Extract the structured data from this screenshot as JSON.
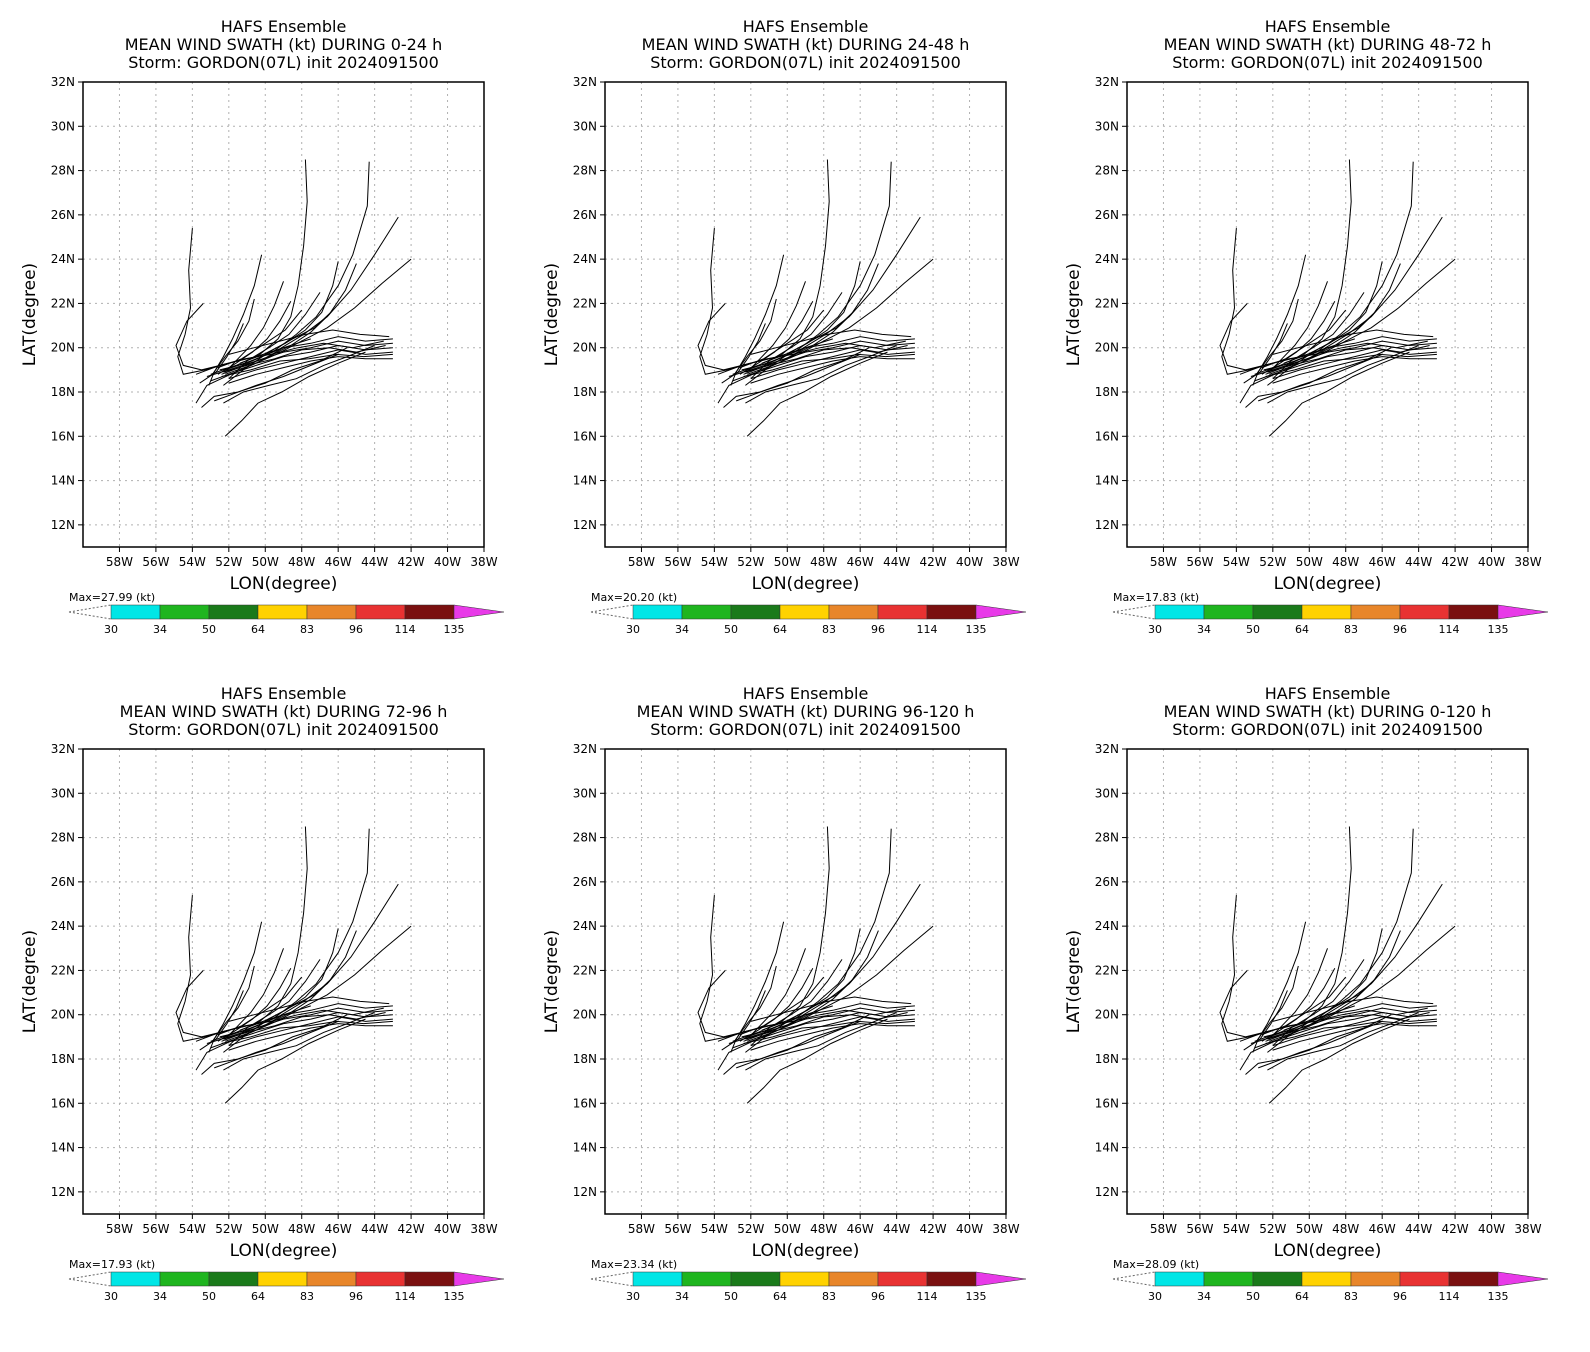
{
  "figure": {
    "ensemble_label": "HAFS Ensemble",
    "storm_line": "Storm: GORDON(07L) init 2024091500",
    "xlabel": "LON(degree)",
    "ylabel": "LAT(degree)",
    "xticks": [
      "58W",
      "56W",
      "54W",
      "52W",
      "50W",
      "48W",
      "46W",
      "44W",
      "42W",
      "40W",
      "38W"
    ],
    "yticks": [
      "12N",
      "14N",
      "16N",
      "18N",
      "20N",
      "22N",
      "24N",
      "26N",
      "28N",
      "30N",
      "32N"
    ],
    "colorbar_levels": [
      "30",
      "34",
      "50",
      "64",
      "83",
      "96",
      "114",
      "135"
    ],
    "colorbar_colors": [
      "#00e6e6",
      "#1fb51f",
      "#1a7a1a",
      "#ffd200",
      "#e8862a",
      "#e83232",
      "#7a1010",
      "#e83ae8"
    ],
    "max_unit": "(kt)",
    "track_color": "#000000"
  },
  "chart_data": [
    {
      "type": "line",
      "title": "MEAN WIND SWATH (kt) DURING  0-24 h",
      "max": "Max=27.99",
      "xlim": [
        -60,
        -38
      ],
      "ylim": [
        11,
        32
      ],
      "series_note": ""
    },
    {
      "type": "line",
      "title": "MEAN WIND SWATH (kt) DURING 24-48 h",
      "max": "Max=20.20",
      "xlim": [
        -60,
        -38
      ],
      "ylim": [
        11,
        32
      ],
      "series_note": ""
    },
    {
      "type": "line",
      "title": "MEAN WIND SWATH (kt) DURING 48-72 h",
      "max": "Max=17.83",
      "xlim": [
        -60,
        -38
      ],
      "ylim": [
        11,
        32
      ],
      "series_note": ""
    },
    {
      "type": "line",
      "title": "MEAN WIND SWATH (kt) DURING 72-96 h",
      "max": "Max=17.93",
      "xlim": [
        -60,
        -38
      ],
      "ylim": [
        11,
        32
      ],
      "series_note": ""
    },
    {
      "type": "line",
      "title": "MEAN WIND SWATH (kt) DURING 96-120 h",
      "max": "Max=23.34",
      "xlim": [
        -60,
        -38
      ],
      "ylim": [
        11,
        32
      ],
      "series_note": ""
    },
    {
      "type": "line",
      "title": "MEAN WIND SWATH (kt) DURING 0-120 h",
      "max": "Max=28.09",
      "xlim": [
        -60,
        -38
      ],
      "ylim": [
        11,
        32
      ],
      "series_note": ""
    }
  ],
  "tracks": [
    [
      [
        -43.0,
        20.4
      ],
      [
        -44.5,
        20.3
      ],
      [
        -46.0,
        20.5
      ],
      [
        -47.5,
        20.2
      ],
      [
        -49.0,
        20.0
      ],
      [
        -50.5,
        19.6
      ],
      [
        -52.0,
        19.3
      ],
      [
        -53.5,
        19.0
      ]
    ],
    [
      [
        -43.0,
        20.2
      ],
      [
        -44.5,
        20.1
      ],
      [
        -46.0,
        20.3
      ],
      [
        -47.5,
        20.0
      ],
      [
        -49.0,
        19.8
      ],
      [
        -50.5,
        19.4
      ],
      [
        -52.0,
        19.0
      ],
      [
        -53.2,
        18.7
      ]
    ],
    [
      [
        -43.0,
        20.0
      ],
      [
        -44.5,
        19.9
      ],
      [
        -46.0,
        20.1
      ],
      [
        -47.5,
        19.8
      ],
      [
        -49.0,
        19.6
      ],
      [
        -50.5,
        19.2
      ],
      [
        -52.0,
        18.8
      ],
      [
        -53.0,
        18.5
      ]
    ],
    [
      [
        -43.0,
        19.8
      ],
      [
        -44.5,
        19.7
      ],
      [
        -46.0,
        19.9
      ],
      [
        -47.5,
        19.6
      ],
      [
        -49.0,
        19.3
      ],
      [
        -50.5,
        19.0
      ],
      [
        -52.0,
        18.6
      ]
    ],
    [
      [
        -43.0,
        19.5
      ],
      [
        -44.5,
        19.5
      ],
      [
        -46.0,
        19.6
      ],
      [
        -47.5,
        19.4
      ],
      [
        -49.0,
        19.1
      ],
      [
        -50.5,
        18.8
      ],
      [
        -52.0,
        18.4
      ]
    ],
    [
      [
        -43.2,
        20.5
      ],
      [
        -44.8,
        20.6
      ],
      [
        -46.3,
        20.8
      ],
      [
        -47.8,
        20.6
      ],
      [
        -49.2,
        20.3
      ],
      [
        -50.6,
        20.0
      ],
      [
        -52.0,
        19.7
      ]
    ],
    [
      [
        -43.4,
        20.1
      ],
      [
        -45.0,
        19.8
      ],
      [
        -46.5,
        20.0
      ],
      [
        -48.0,
        19.9
      ],
      [
        -49.5,
        19.5
      ],
      [
        -51.0,
        19.2
      ],
      [
        -52.3,
        18.9
      ]
    ],
    [
      [
        -43.0,
        19.7
      ],
      [
        -44.6,
        19.6
      ],
      [
        -46.1,
        19.7
      ],
      [
        -47.6,
        19.5
      ],
      [
        -49.2,
        19.4
      ],
      [
        -50.8,
        19.0
      ],
      [
        -52.4,
        18.7
      ]
    ],
    [
      [
        -44.3,
        28.4
      ],
      [
        -44.4,
        26.4
      ],
      [
        -45.2,
        24.2
      ],
      [
        -46.0,
        22.8
      ],
      [
        -47.2,
        21.4
      ],
      [
        -48.3,
        20.6
      ],
      [
        -49.6,
        19.8
      ],
      [
        -51.0,
        19.3
      ],
      [
        -52.5,
        19.0
      ]
    ],
    [
      [
        -47.8,
        28.5
      ],
      [
        -47.7,
        26.6
      ],
      [
        -47.9,
        24.6
      ],
      [
        -48.2,
        22.8
      ],
      [
        -48.6,
        21.4
      ],
      [
        -49.3,
        20.4
      ],
      [
        -50.3,
        19.7
      ],
      [
        -51.6,
        19.2
      ],
      [
        -53.0,
        18.8
      ]
    ],
    [
      [
        -42.7,
        25.9
      ],
      [
        -44.0,
        24.2
      ],
      [
        -45.3,
        22.6
      ],
      [
        -46.6,
        21.4
      ],
      [
        -47.9,
        20.6
      ],
      [
        -49.3,
        19.9
      ],
      [
        -50.8,
        19.4
      ],
      [
        -52.2,
        19.0
      ]
    ],
    [
      [
        -42.0,
        24.0
      ],
      [
        -43.6,
        22.9
      ],
      [
        -45.1,
        21.8
      ],
      [
        -46.6,
        20.9
      ],
      [
        -48.0,
        20.3
      ],
      [
        -49.4,
        19.7
      ],
      [
        -50.8,
        19.2
      ],
      [
        -52.2,
        18.8
      ]
    ],
    [
      [
        -45.0,
        23.8
      ],
      [
        -45.6,
        22.6
      ],
      [
        -46.5,
        21.5
      ],
      [
        -47.5,
        20.7
      ],
      [
        -48.6,
        20.1
      ],
      [
        -49.8,
        19.6
      ],
      [
        -51.1,
        19.2
      ],
      [
        -52.4,
        18.8
      ]
    ],
    [
      [
        -46.0,
        23.9
      ],
      [
        -46.3,
        22.8
      ],
      [
        -46.9,
        21.6
      ],
      [
        -47.8,
        20.8
      ],
      [
        -48.9,
        20.2
      ],
      [
        -50.1,
        19.7
      ],
      [
        -51.4,
        19.3
      ]
    ],
    [
      [
        -50.2,
        24.2
      ],
      [
        -50.6,
        22.8
      ],
      [
        -51.2,
        21.5
      ],
      [
        -51.8,
        20.4
      ],
      [
        -52.3,
        19.6
      ],
      [
        -52.8,
        18.9
      ],
      [
        -53.1,
        18.3
      ]
    ],
    [
      [
        -49.0,
        23.0
      ],
      [
        -49.5,
        21.9
      ],
      [
        -50.1,
        20.9
      ],
      [
        -50.8,
        20.1
      ],
      [
        -51.5,
        19.5
      ],
      [
        -52.2,
        18.9
      ]
    ],
    [
      [
        -48.6,
        22.1
      ],
      [
        -49.2,
        21.2
      ],
      [
        -49.9,
        20.4
      ],
      [
        -50.7,
        19.8
      ],
      [
        -51.6,
        19.3
      ],
      [
        -52.6,
        18.8
      ]
    ],
    [
      [
        -54.0,
        25.4
      ],
      [
        -54.2,
        23.5
      ],
      [
        -54.1,
        21.8
      ],
      [
        -54.4,
        20.6
      ],
      [
        -54.8,
        19.6
      ],
      [
        -54.5,
        18.8
      ],
      [
        -53.3,
        19.0
      ],
      [
        -52.0,
        19.3
      ],
      [
        -50.5,
        19.6
      ]
    ],
    [
      [
        -53.4,
        22.0
      ],
      [
        -54.3,
        21.2
      ],
      [
        -54.9,
        20.1
      ],
      [
        -54.5,
        19.2
      ],
      [
        -53.5,
        19.0
      ]
    ],
    [
      [
        -44.0,
        20.1
      ],
      [
        -45.5,
        19.6
      ],
      [
        -46.8,
        19.2
      ],
      [
        -48.3,
        18.6
      ],
      [
        -49.8,
        18.3
      ],
      [
        -51.2,
        18.0
      ],
      [
        -52.3,
        17.5
      ]
    ],
    [
      [
        -44.5,
        19.8
      ],
      [
        -46.0,
        19.3
      ],
      [
        -47.6,
        18.7
      ],
      [
        -49.1,
        18.0
      ],
      [
        -50.4,
        17.5
      ],
      [
        -51.3,
        16.7
      ],
      [
        -52.2,
        16.0
      ]
    ],
    [
      [
        -46.0,
        19.7
      ],
      [
        -47.5,
        19.2
      ],
      [
        -49.0,
        18.7
      ],
      [
        -50.5,
        18.3
      ],
      [
        -51.8,
        17.9
      ],
      [
        -52.8,
        17.6
      ]
    ],
    [
      [
        -45.5,
        20.0
      ],
      [
        -47.0,
        19.4
      ],
      [
        -48.5,
        19.0
      ],
      [
        -50.0,
        18.4
      ],
      [
        -51.5,
        18.0
      ],
      [
        -52.8,
        17.8
      ],
      [
        -53.5,
        17.3
      ]
    ],
    [
      [
        -47.5,
        20.4
      ],
      [
        -49.0,
        20.0
      ],
      [
        -50.5,
        19.3
      ],
      [
        -51.9,
        18.8
      ],
      [
        -53.2,
        18.3
      ],
      [
        -53.8,
        17.5
      ]
    ],
    [
      [
        -47.0,
        22.5
      ],
      [
        -47.8,
        21.5
      ],
      [
        -48.7,
        20.6
      ],
      [
        -49.8,
        20.0
      ],
      [
        -51.0,
        19.4
      ],
      [
        -52.0,
        18.6
      ]
    ],
    [
      [
        -46.4,
        21.6
      ],
      [
        -47.3,
        20.9
      ],
      [
        -48.5,
        20.4
      ],
      [
        -49.8,
        19.8
      ],
      [
        -51.2,
        19.0
      ],
      [
        -52.3,
        18.3
      ]
    ],
    [
      [
        -51.2,
        21.1
      ],
      [
        -51.6,
        20.3
      ],
      [
        -52.1,
        19.6
      ],
      [
        -52.7,
        18.9
      ],
      [
        -53.6,
        18.4
      ]
    ],
    [
      [
        -48.0,
        21.7
      ],
      [
        -48.9,
        20.8
      ],
      [
        -50.0,
        20.2
      ],
      [
        -51.3,
        19.5
      ],
      [
        -52.6,
        19.1
      ]
    ],
    [
      [
        -50.6,
        22.2
      ],
      [
        -50.9,
        21.2
      ],
      [
        -51.5,
        20.3
      ],
      [
        -52.2,
        19.6
      ],
      [
        -52.9,
        18.8
      ]
    ],
    [
      [
        -43.5,
        20.3
      ],
      [
        -45.2,
        20.0
      ],
      [
        -46.8,
        20.2
      ],
      [
        -48.2,
        20.0
      ],
      [
        -49.7,
        19.7
      ],
      [
        -51.1,
        19.5
      ],
      [
        -52.5,
        19.2
      ],
      [
        -53.8,
        18.8
      ]
    ]
  ]
}
